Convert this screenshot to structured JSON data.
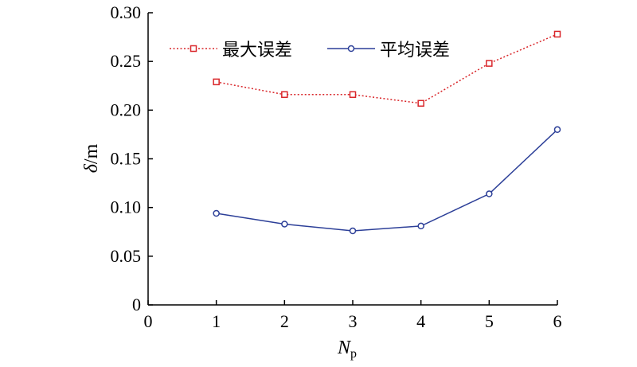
{
  "chart_data": {
    "type": "line",
    "x": [
      1,
      2,
      3,
      4,
      5,
      6
    ],
    "xlim": [
      0,
      6
    ],
    "ylim": [
      0,
      0.3
    ],
    "xticks": [
      "0",
      "1",
      "2",
      "3",
      "4",
      "5",
      "6"
    ],
    "yticks": [
      "0",
      "0.05",
      "0.10",
      "0.15",
      "0.20",
      "0.25",
      "0.30"
    ],
    "xlabel": {
      "main": "N",
      "sub": "p"
    },
    "ylabel": {
      "main": "δ",
      "rest": "/m"
    },
    "legend": {
      "placement": "top"
    },
    "grid": false,
    "series": [
      {
        "name": "最大误差",
        "values": [
          0.229,
          0.216,
          0.216,
          0.207,
          0.248,
          0.278
        ],
        "color": "#d9262a",
        "style": "dotted",
        "marker": "square"
      },
      {
        "name": "平均误差",
        "values": [
          0.094,
          0.083,
          0.076,
          0.081,
          0.114,
          0.18
        ],
        "color": "#2c3f98",
        "style": "solid",
        "marker": "circle"
      }
    ]
  }
}
